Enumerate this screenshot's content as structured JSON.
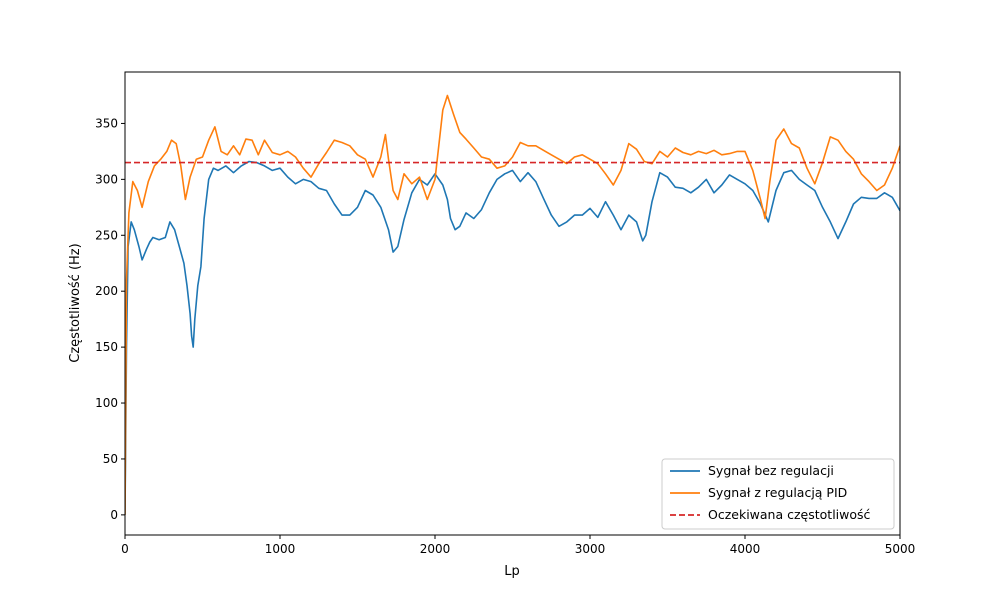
{
  "chart_data": {
    "type": "line",
    "title": "",
    "xlabel": "Lp",
    "ylabel": "Częstotliwość (Hz)",
    "xlim": [
      0,
      5000
    ],
    "ylim": [
      -18,
      396
    ],
    "xticks": [
      0,
      1000,
      2000,
      3000,
      4000,
      5000
    ],
    "yticks": [
      0,
      50,
      100,
      150,
      200,
      250,
      300,
      350
    ],
    "grid": false,
    "legend_position": "lower-right",
    "series": [
      {
        "name": "Sygnał bez regulacji",
        "color": "#1f77b4",
        "style": "solid",
        "points": [
          [
            0,
            0
          ],
          [
            10,
            150
          ],
          [
            20,
            240
          ],
          [
            40,
            262
          ],
          [
            60,
            255
          ],
          [
            90,
            240
          ],
          [
            110,
            228
          ],
          [
            140,
            238
          ],
          [
            160,
            244
          ],
          [
            180,
            248
          ],
          [
            220,
            246
          ],
          [
            260,
            248
          ],
          [
            290,
            262
          ],
          [
            320,
            255
          ],
          [
            350,
            240
          ],
          [
            380,
            225
          ],
          [
            400,
            205
          ],
          [
            420,
            180
          ],
          [
            430,
            160
          ],
          [
            440,
            150
          ],
          [
            450,
            175
          ],
          [
            470,
            205
          ],
          [
            490,
            222
          ],
          [
            510,
            265
          ],
          [
            540,
            300
          ],
          [
            570,
            310
          ],
          [
            600,
            308
          ],
          [
            650,
            312
          ],
          [
            700,
            306
          ],
          [
            750,
            312
          ],
          [
            800,
            316
          ],
          [
            850,
            315
          ],
          [
            900,
            312
          ],
          [
            950,
            308
          ],
          [
            1000,
            310
          ],
          [
            1050,
            302
          ],
          [
            1100,
            296
          ],
          [
            1150,
            300
          ],
          [
            1200,
            298
          ],
          [
            1250,
            292
          ],
          [
            1300,
            290
          ],
          [
            1350,
            278
          ],
          [
            1400,
            268
          ],
          [
            1450,
            268
          ],
          [
            1500,
            275
          ],
          [
            1550,
            290
          ],
          [
            1600,
            286
          ],
          [
            1650,
            275
          ],
          [
            1700,
            255
          ],
          [
            1730,
            235
          ],
          [
            1760,
            240
          ],
          [
            1800,
            264
          ],
          [
            1850,
            288
          ],
          [
            1900,
            300
          ],
          [
            1950,
            295
          ],
          [
            2000,
            305
          ],
          [
            2050,
            295
          ],
          [
            2080,
            282
          ],
          [
            2100,
            265
          ],
          [
            2130,
            255
          ],
          [
            2160,
            258
          ],
          [
            2200,
            270
          ],
          [
            2250,
            265
          ],
          [
            2300,
            273
          ],
          [
            2350,
            288
          ],
          [
            2400,
            300
          ],
          [
            2450,
            305
          ],
          [
            2500,
            308
          ],
          [
            2550,
            298
          ],
          [
            2600,
            306
          ],
          [
            2650,
            298
          ],
          [
            2700,
            283
          ],
          [
            2750,
            268
          ],
          [
            2800,
            258
          ],
          [
            2850,
            262
          ],
          [
            2900,
            268
          ],
          [
            2950,
            268
          ],
          [
            3000,
            274
          ],
          [
            3050,
            266
          ],
          [
            3100,
            280
          ],
          [
            3150,
            268
          ],
          [
            3200,
            255
          ],
          [
            3250,
            268
          ],
          [
            3300,
            262
          ],
          [
            3340,
            245
          ],
          [
            3360,
            250
          ],
          [
            3400,
            280
          ],
          [
            3450,
            306
          ],
          [
            3500,
            302
          ],
          [
            3550,
            293
          ],
          [
            3600,
            292
          ],
          [
            3650,
            288
          ],
          [
            3700,
            293
          ],
          [
            3750,
            300
          ],
          [
            3800,
            288
          ],
          [
            3850,
            295
          ],
          [
            3900,
            304
          ],
          [
            3950,
            300
          ],
          [
            4000,
            296
          ],
          [
            4050,
            290
          ],
          [
            4100,
            278
          ],
          [
            4150,
            262
          ],
          [
            4200,
            290
          ],
          [
            4250,
            306
          ],
          [
            4300,
            308
          ],
          [
            4350,
            300
          ],
          [
            4400,
            295
          ],
          [
            4450,
            290
          ],
          [
            4500,
            275
          ],
          [
            4550,
            262
          ],
          [
            4600,
            247
          ],
          [
            4650,
            262
          ],
          [
            4700,
            278
          ],
          [
            4750,
            284
          ],
          [
            4800,
            283
          ],
          [
            4850,
            283
          ],
          [
            4900,
            288
          ],
          [
            4950,
            284
          ],
          [
            5000,
            272
          ]
        ]
      },
      {
        "name": "Sygnał z regulacją PID",
        "color": "#ff7f0e",
        "style": "solid",
        "points": [
          [
            0,
            0
          ],
          [
            10,
            210
          ],
          [
            25,
            270
          ],
          [
            50,
            298
          ],
          [
            80,
            290
          ],
          [
            110,
            275
          ],
          [
            150,
            298
          ],
          [
            190,
            312
          ],
          [
            230,
            318
          ],
          [
            270,
            325
          ],
          [
            300,
            335
          ],
          [
            330,
            332
          ],
          [
            360,
            312
          ],
          [
            390,
            282
          ],
          [
            420,
            302
          ],
          [
            460,
            318
          ],
          [
            500,
            320
          ],
          [
            540,
            335
          ],
          [
            580,
            347
          ],
          [
            620,
            325
          ],
          [
            660,
            322
          ],
          [
            700,
            330
          ],
          [
            740,
            322
          ],
          [
            780,
            336
          ],
          [
            820,
            335
          ],
          [
            860,
            322
          ],
          [
            900,
            335
          ],
          [
            950,
            324
          ],
          [
            1000,
            322
          ],
          [
            1050,
            325
          ],
          [
            1100,
            320
          ],
          [
            1150,
            310
          ],
          [
            1200,
            302
          ],
          [
            1250,
            314
          ],
          [
            1300,
            324
          ],
          [
            1350,
            335
          ],
          [
            1400,
            333
          ],
          [
            1450,
            330
          ],
          [
            1500,
            322
          ],
          [
            1550,
            318
          ],
          [
            1600,
            302
          ],
          [
            1650,
            320
          ],
          [
            1680,
            340
          ],
          [
            1700,
            318
          ],
          [
            1730,
            290
          ],
          [
            1760,
            282
          ],
          [
            1800,
            305
          ],
          [
            1850,
            296
          ],
          [
            1900,
            302
          ],
          [
            1950,
            282
          ],
          [
            2000,
            300
          ],
          [
            2050,
            362
          ],
          [
            2080,
            375
          ],
          [
            2120,
            358
          ],
          [
            2160,
            342
          ],
          [
            2200,
            336
          ],
          [
            2250,
            328
          ],
          [
            2300,
            320
          ],
          [
            2350,
            318
          ],
          [
            2400,
            310
          ],
          [
            2450,
            312
          ],
          [
            2500,
            320
          ],
          [
            2550,
            333
          ],
          [
            2600,
            330
          ],
          [
            2650,
            330
          ],
          [
            2700,
            326
          ],
          [
            2750,
            322
          ],
          [
            2800,
            318
          ],
          [
            2850,
            314
          ],
          [
            2900,
            320
          ],
          [
            2950,
            322
          ],
          [
            3000,
            318
          ],
          [
            3050,
            314
          ],
          [
            3100,
            305
          ],
          [
            3150,
            295
          ],
          [
            3200,
            308
          ],
          [
            3250,
            332
          ],
          [
            3300,
            327
          ],
          [
            3350,
            316
          ],
          [
            3400,
            314
          ],
          [
            3450,
            325
          ],
          [
            3500,
            320
          ],
          [
            3550,
            328
          ],
          [
            3600,
            324
          ],
          [
            3650,
            322
          ],
          [
            3700,
            325
          ],
          [
            3750,
            323
          ],
          [
            3800,
            326
          ],
          [
            3850,
            322
          ],
          [
            3900,
            323
          ],
          [
            3950,
            325
          ],
          [
            4000,
            325
          ],
          [
            4050,
            308
          ],
          [
            4100,
            282
          ],
          [
            4130,
            265
          ],
          [
            4160,
            298
          ],
          [
            4200,
            335
          ],
          [
            4250,
            345
          ],
          [
            4300,
            332
          ],
          [
            4350,
            328
          ],
          [
            4400,
            310
          ],
          [
            4450,
            296
          ],
          [
            4500,
            315
          ],
          [
            4550,
            338
          ],
          [
            4600,
            335
          ],
          [
            4650,
            325
          ],
          [
            4700,
            318
          ],
          [
            4750,
            305
          ],
          [
            4800,
            298
          ],
          [
            4850,
            290
          ],
          [
            4900,
            295
          ],
          [
            4950,
            310
          ],
          [
            5000,
            330
          ]
        ]
      },
      {
        "name": "Oczekiwana częstotliwość",
        "color": "#d62728",
        "style": "dashed",
        "points": [
          [
            0,
            315
          ],
          [
            5000,
            315
          ]
        ]
      }
    ]
  }
}
